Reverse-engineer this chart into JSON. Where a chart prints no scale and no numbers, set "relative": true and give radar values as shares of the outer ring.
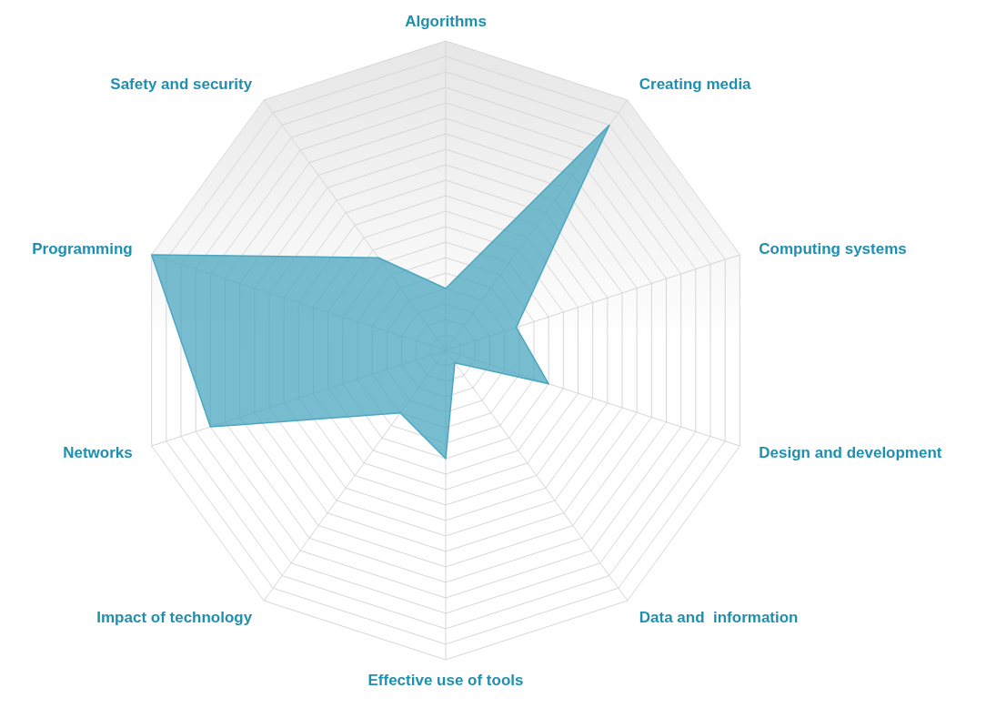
{
  "chart_data": {
    "type": "radar",
    "relative": true,
    "grid": true,
    "categories": [
      "Algorithms",
      "Creating media",
      "Computing systems",
      "Design and development",
      "Data and  information",
      "Effective use of tools",
      "Impact of technology",
      "Networks",
      "Programming",
      "Safety and security"
    ],
    "series": [
      {
        "color": "#4ba6c0",
        "values": [
          0.2,
          0.9,
          0.24,
          0.35,
          0.05,
          0.35,
          0.25,
          0.8,
          1.0,
          0.37
        ]
      }
    ]
  }
}
